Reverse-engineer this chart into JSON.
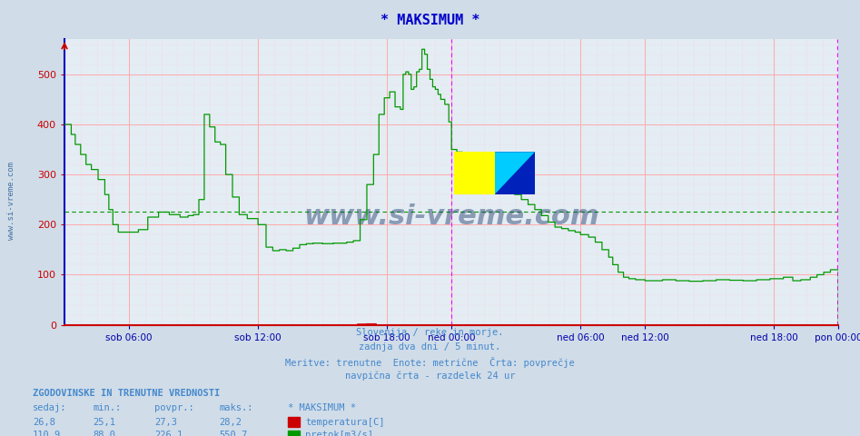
{
  "title": "* MAKSIMUM *",
  "title_color": "#0000cc",
  "bg_color": "#d0dce8",
  "plot_bg_color": "#e4ecf4",
  "grid_major_color": "#ffaaaa",
  "grid_minor_color": "#ffcccc",
  "avg_line_color": "#009900",
  "avg_line_value": 226.1,
  "temp_color": "#cc0000",
  "flow_color": "#009900",
  "magenta_color": "#ff00ff",
  "ylim": [
    0,
    570
  ],
  "yticks": [
    0,
    100,
    200,
    300,
    400,
    500
  ],
  "xlim": [
    0,
    576
  ],
  "xtick_positions": [
    48,
    144,
    240,
    288,
    384,
    432,
    528,
    576
  ],
  "xtick_labels": [
    "sob 06:00",
    "sob 12:00",
    "sob 18:00",
    "ned 00:00",
    "ned 06:00",
    "ned 12:00",
    "ned 18:00",
    "pon 00:00"
  ],
  "magenta_vlines": [
    288,
    575
  ],
  "subtitle_lines": [
    "Slovenija / reke in morje.",
    "zadnja dva dni / 5 minut.",
    "Meritve: trenutne  Enote: metrične  Črta: povprečje",
    "navpična črta - razdelek 24 ur"
  ],
  "subtitle_color": "#4488cc",
  "watermark": "www.si-vreme.com",
  "watermark_color": "#1a3a6a",
  "info_title": "ZGODOVINSKE IN TRENUTNE VREDNOSTI",
  "info_headers": [
    "sedaj:",
    "min.:",
    "povpr.:",
    "maks.:",
    "* MAKSIMUM *"
  ],
  "info_temp": [
    "26,8",
    "25,1",
    "27,3",
    "28,2"
  ],
  "info_flow": [
    "110,9",
    "88,0",
    "226,1",
    "550,7"
  ],
  "legend_temp_label": "temperatura[C]",
  "legend_flow_label": "pretok[m3/s]",
  "left_watermark": "www.si-vreme.com",
  "left_watermark_color": "#336699",
  "ylabel_color": "#cc0000",
  "xlabel_color": "#0000aa",
  "spine_left_color": "#0000bb",
  "spine_bottom_color": "#cc0000",
  "logo_yellow": "#ffff00",
  "logo_cyan": "#00ccff",
  "logo_blue": "#0022bb"
}
